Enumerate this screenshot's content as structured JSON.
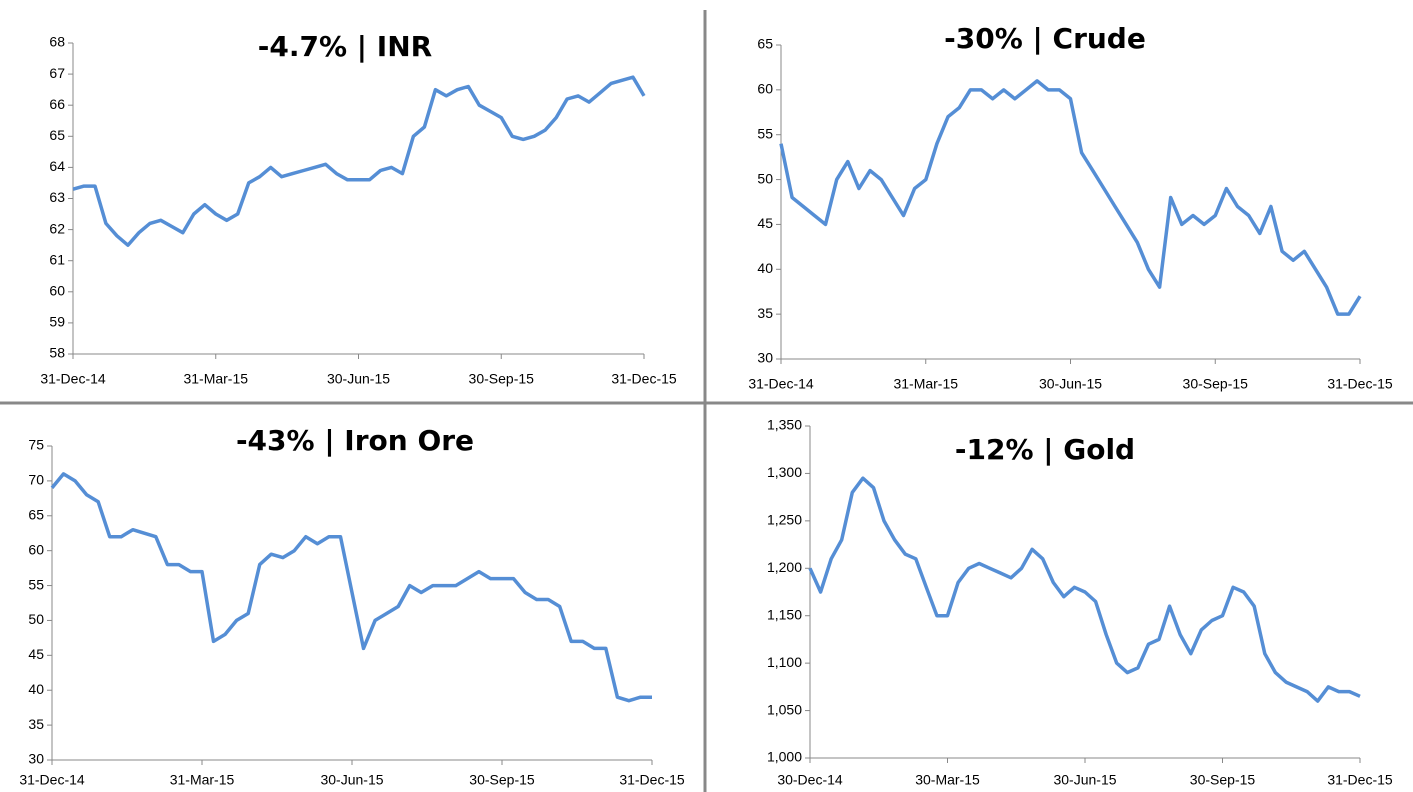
{
  "chart_data": [
    {
      "type": "line",
      "title": "-4.7% | INR",
      "categories": [
        "31-Dec-14",
        null,
        null,
        null,
        null,
        null,
        null,
        null,
        null,
        null,
        null,
        null,
        null,
        "31-Mar-15",
        null,
        null,
        null,
        null,
        null,
        null,
        null,
        null,
        null,
        null,
        null,
        null,
        "30-Jun-15",
        null,
        null,
        null,
        null,
        null,
        null,
        null,
        null,
        null,
        null,
        null,
        null,
        "30-Sep-15",
        null,
        null,
        null,
        null,
        null,
        null,
        null,
        null,
        null,
        null,
        null,
        null,
        "31-Dec-15"
      ],
      "series": [
        {
          "color": "#558ed5",
          "values": [
            63.3,
            63.4,
            63.4,
            62.2,
            61.8,
            61.5,
            61.9,
            62.2,
            62.3,
            62.1,
            61.9,
            62.5,
            62.8,
            62.5,
            62.3,
            62.5,
            63.5,
            63.7,
            64.0,
            63.7,
            63.8,
            63.9,
            64.0,
            64.1,
            63.8,
            63.6,
            63.6,
            63.6,
            63.9,
            64.0,
            63.8,
            65.0,
            65.3,
            66.5,
            66.3,
            66.5,
            66.6,
            66.0,
            65.8,
            65.6,
            65.0,
            64.9,
            65.0,
            65.2,
            65.6,
            66.2,
            66.3,
            66.1,
            66.4,
            66.7,
            66.8,
            66.9,
            66.3
          ]
        }
      ],
      "ylim": [
        58,
        68
      ],
      "yticks": [
        58,
        59,
        60,
        61,
        62,
        63,
        64,
        65,
        66,
        67,
        68
      ]
    },
    {
      "type": "line",
      "title": "-30% | Crude",
      "categories": [
        "31-Dec-14",
        null,
        null,
        null,
        null,
        null,
        null,
        null,
        null,
        null,
        null,
        null,
        null,
        "31-Mar-15",
        null,
        null,
        null,
        null,
        null,
        null,
        null,
        null,
        null,
        null,
        null,
        null,
        "30-Jun-15",
        null,
        null,
        null,
        null,
        null,
        null,
        null,
        null,
        null,
        null,
        null,
        null,
        "30-Sep-15",
        null,
        null,
        null,
        null,
        null,
        null,
        null,
        null,
        null,
        null,
        null,
        null,
        "31-Dec-15"
      ],
      "series": [
        {
          "color": "#558ed5",
          "values": [
            54,
            48,
            47,
            46,
            45,
            50,
            52,
            49,
            51,
            50,
            48,
            46,
            49,
            50,
            54,
            57,
            58,
            60,
            60,
            59,
            60,
            59,
            60,
            61,
            60,
            60,
            59,
            53,
            51,
            49,
            47,
            45,
            43,
            40,
            38,
            48,
            45,
            46,
            45,
            46,
            49,
            47,
            46,
            44,
            47,
            42,
            41,
            42,
            40,
            38,
            35,
            35,
            37
          ]
        }
      ],
      "ylim": [
        30,
        65
      ],
      "yticks": [
        30,
        35,
        40,
        45,
        50,
        55,
        60,
        65
      ]
    },
    {
      "type": "line",
      "title": "-43% | Iron Ore",
      "categories": [
        "31-Dec-14",
        null,
        null,
        null,
        null,
        null,
        null,
        null,
        null,
        null,
        null,
        null,
        null,
        "31-Mar-15",
        null,
        null,
        null,
        null,
        null,
        null,
        null,
        null,
        null,
        null,
        null,
        null,
        "30-Jun-15",
        null,
        null,
        null,
        null,
        null,
        null,
        null,
        null,
        null,
        null,
        null,
        null,
        "30-Sep-15",
        null,
        null,
        null,
        null,
        null,
        null,
        null,
        null,
        null,
        null,
        null,
        null,
        "31-Dec-15"
      ],
      "series": [
        {
          "color": "#558ed5",
          "values": [
            69,
            71,
            70,
            68,
            67,
            62,
            62,
            63,
            62.5,
            62,
            58,
            58,
            57,
            57,
            47,
            48,
            50,
            51,
            58,
            59.5,
            59,
            60,
            62,
            61,
            62,
            62,
            54,
            46,
            50,
            51,
            52,
            55,
            54,
            55,
            55,
            55,
            56,
            57,
            56,
            56,
            56,
            54,
            53,
            53,
            52,
            47,
            47,
            46,
            46,
            39,
            38.5,
            39,
            39
          ]
        }
      ],
      "ylim": [
        30,
        75
      ],
      "yticks": [
        30,
        35,
        40,
        45,
        50,
        55,
        60,
        65,
        70,
        75
      ]
    },
    {
      "type": "line",
      "title": "-12% | Gold",
      "categories": [
        "30-Dec-14",
        null,
        null,
        null,
        null,
        null,
        null,
        null,
        null,
        null,
        null,
        null,
        null,
        "30-Mar-15",
        null,
        null,
        null,
        null,
        null,
        null,
        null,
        null,
        null,
        null,
        null,
        null,
        "30-Jun-15",
        null,
        null,
        null,
        null,
        null,
        null,
        null,
        null,
        null,
        null,
        null,
        null,
        "30-Sep-15",
        null,
        null,
        null,
        null,
        null,
        null,
        null,
        null,
        null,
        null,
        null,
        null,
        "31-Dec-15"
      ],
      "series": [
        {
          "color": "#558ed5",
          "values": [
            1200,
            1175,
            1210,
            1230,
            1280,
            1295,
            1285,
            1250,
            1230,
            1215,
            1210,
            1180,
            1150,
            1150,
            1185,
            1200,
            1205,
            1200,
            1195,
            1190,
            1200,
            1220,
            1210,
            1185,
            1170,
            1180,
            1175,
            1165,
            1130,
            1100,
            1090,
            1095,
            1120,
            1125,
            1160,
            1130,
            1110,
            1135,
            1145,
            1150,
            1180,
            1175,
            1160,
            1110,
            1090,
            1080,
            1075,
            1070,
            1060,
            1075,
            1070,
            1070,
            1065
          ]
        }
      ],
      "ylim": [
        1000,
        1350
      ],
      "yticks": [
        {
          "value": 1000,
          "label": "1,000"
        },
        {
          "value": 1050,
          "label": "1,050"
        },
        {
          "value": 1100,
          "label": "1,100"
        },
        {
          "value": 1150,
          "label": "1,150"
        },
        {
          "value": 1200,
          "label": "1,200"
        },
        {
          "value": 1250,
          "label": "1,250"
        },
        {
          "value": 1300,
          "label": "1,300"
        },
        {
          "value": 1350,
          "label": "1,350"
        }
      ]
    }
  ]
}
